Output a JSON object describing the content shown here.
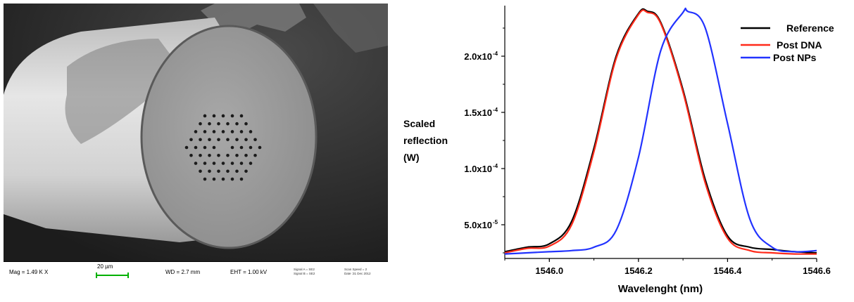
{
  "sem_image": {
    "mag": "Mag =  1.49 K X",
    "scale_bar_label": "20 µm",
    "wd": "WD =  2.7 mm",
    "eht": "EHT =  1.00 kV",
    "signal_a": "Signal A = SE2",
    "signal_b": "Signal B = SE2",
    "scan_speed": "Scan Speed = 2",
    "date": "Date :31 Dec 2012"
  },
  "chart_data": {
    "type": "line",
    "title": "",
    "xlabel": "Wavelenght (nm)",
    "ylabel_lines": [
      "Scaled",
      "reflection",
      "(W)"
    ],
    "xlim": [
      1545.9,
      1546.6
    ],
    "ylim": [
      2e-05,
      0.000245
    ],
    "xticks": [
      1546.0,
      1546.2,
      1546.4,
      1546.6
    ],
    "xtick_labels": [
      "1546.0",
      "1546.2",
      "1546.4",
      "1546.6"
    ],
    "yticks": [
      5e-05,
      0.0001,
      0.00015,
      0.0002
    ],
    "ytick_labels": [
      {
        "mantissa": "5.0x10",
        "exp": "-5"
      },
      {
        "mantissa": "1.0x10",
        "exp": "-4"
      },
      {
        "mantissa": "1.5x10",
        "exp": "-4"
      },
      {
        "mantissa": "2.0x10",
        "exp": "-4"
      }
    ],
    "legend_position": "top-right",
    "series": [
      {
        "name": "Reference",
        "color": "#000000",
        "x": [
          1545.9,
          1545.95,
          1546.0,
          1546.05,
          1546.1,
          1546.15,
          1546.2,
          1546.22,
          1546.25,
          1546.3,
          1546.35,
          1546.4,
          1546.45,
          1546.5,
          1546.55,
          1546.6
        ],
        "y": [
          2.6e-05,
          3e-05,
          3.3e-05,
          5.3e-05,
          0.000118,
          0.0002,
          0.000238,
          0.00024,
          0.00023,
          0.00017,
          9e-05,
          4e-05,
          3e-05,
          2.8e-05,
          2.6e-05,
          2.5e-05
        ]
      },
      {
        "name": "Post DNA",
        "color": "#ff2a1a",
        "x": [
          1545.9,
          1545.95,
          1546.0,
          1546.05,
          1546.1,
          1546.15,
          1546.2,
          1546.22,
          1546.25,
          1546.3,
          1546.35,
          1546.4,
          1546.45,
          1546.5,
          1546.55,
          1546.6
        ],
        "y": [
          2.5e-05,
          2.9e-05,
          3.1e-05,
          5e-05,
          0.000115,
          0.000198,
          0.000237,
          0.000239,
          0.000229,
          0.000168,
          8.7e-05,
          3.8e-05,
          2.7e-05,
          2.5e-05,
          2.4e-05,
          2.4e-05
        ]
      },
      {
        "name": "Post NPs",
        "color": "#2233ff",
        "x": [
          1545.9,
          1545.95,
          1546.0,
          1546.05,
          1546.1,
          1546.15,
          1546.2,
          1546.25,
          1546.3,
          1546.31,
          1546.35,
          1546.4,
          1546.45,
          1546.5,
          1546.55,
          1546.6
        ],
        "y": [
          2.4e-05,
          2.5e-05,
          2.6e-05,
          2.7e-05,
          3e-05,
          4.5e-05,
          0.00011,
          0.000205,
          0.000239,
          0.00024,
          0.000225,
          0.00014,
          5.5e-05,
          3e-05,
          2.6e-05,
          2.7e-05
        ]
      }
    ]
  }
}
